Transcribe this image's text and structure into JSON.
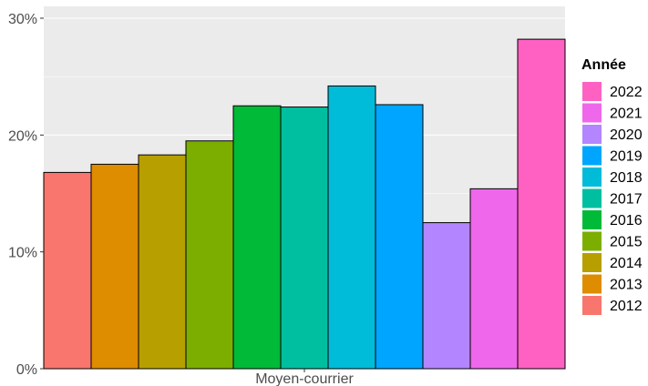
{
  "chart_data": {
    "type": "bar",
    "categories": [
      "Moyen-courrier"
    ],
    "series": [
      {
        "name": "2012",
        "values": [
          0.168
        ],
        "color": "#F8766D"
      },
      {
        "name": "2013",
        "values": [
          0.175
        ],
        "color": "#DE8C00"
      },
      {
        "name": "2014",
        "values": [
          0.183
        ],
        "color": "#B79F00"
      },
      {
        "name": "2015",
        "values": [
          0.195
        ],
        "color": "#7CAE00"
      },
      {
        "name": "2016",
        "values": [
          0.225
        ],
        "color": "#00BA38"
      },
      {
        "name": "2017",
        "values": [
          0.224
        ],
        "color": "#00BFA0"
      },
      {
        "name": "2018",
        "values": [
          0.242
        ],
        "color": "#00BCD8"
      },
      {
        "name": "2019",
        "values": [
          0.226
        ],
        "color": "#00A5FF"
      },
      {
        "name": "2020",
        "values": [
          0.125
        ],
        "color": "#B385FF"
      },
      {
        "name": "2021",
        "values": [
          0.154
        ],
        "color": "#EF67EB"
      },
      {
        "name": "2022",
        "values": [
          0.282
        ],
        "color": "#FF61C3"
      }
    ],
    "title": "",
    "xlabel": "",
    "ylabel": "",
    "ylim": [
      0,
      0.3
    ],
    "yticks": [
      0,
      0.1,
      0.2,
      0.3
    ],
    "ytick_labels": [
      "0%",
      "10%",
      "20%",
      "30%"
    ],
    "grid": true,
    "legend": {
      "title": "Année",
      "position": "right",
      "order": "reversed"
    }
  }
}
